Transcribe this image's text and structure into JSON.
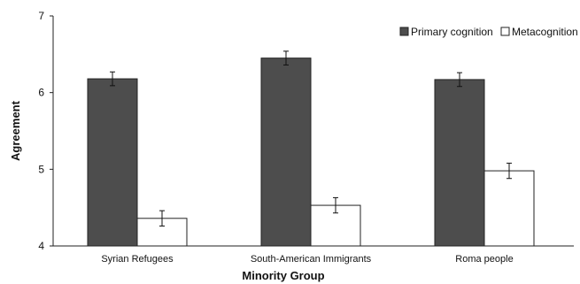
{
  "chart_data": {
    "type": "bar",
    "title": "",
    "xlabel": "Minority Group",
    "ylabel": "Agreement",
    "categories": [
      "Syrian Refugees",
      "South-American Immigrants",
      "Roma people"
    ],
    "series": [
      {
        "name": "Primary cognition",
        "values": [
          6.18,
          6.45,
          6.17
        ],
        "errors": [
          0.09,
          0.09,
          0.09
        ],
        "color": "#4d4d4d"
      },
      {
        "name": "Metacognition",
        "values": [
          4.36,
          4.53,
          4.98
        ],
        "errors": [
          0.1,
          0.1,
          0.1
        ],
        "color": "#ffffff"
      }
    ],
    "ylim": [
      4,
      7
    ],
    "yticks": [
      4,
      5,
      6,
      7
    ],
    "grid": false,
    "legend_position": "top-right"
  }
}
